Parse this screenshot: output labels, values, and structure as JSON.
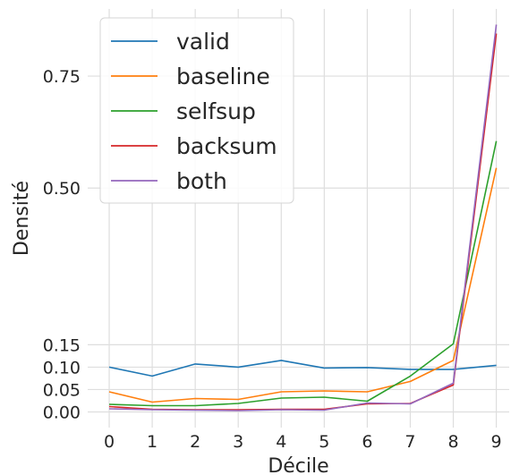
{
  "chart_data": {
    "type": "line",
    "title": "",
    "xlabel": "Décile",
    "ylabel": "Densité",
    "x": [
      0,
      1,
      2,
      3,
      4,
      5,
      6,
      7,
      8,
      9
    ],
    "x_ticks": [
      "0",
      "1",
      "2",
      "3",
      "4",
      "5",
      "6",
      "7",
      "8",
      "9"
    ],
    "y_ticks": [
      {
        "value": 0.0,
        "label": "0.00"
      },
      {
        "value": 0.05,
        "label": "0.05"
      },
      {
        "value": 0.1,
        "label": "0.10"
      },
      {
        "value": 0.15,
        "label": "0.15"
      },
      {
        "value": 0.5,
        "label": "0.50"
      },
      {
        "value": 0.75,
        "label": "0.75"
      }
    ],
    "xlim": [
      -0.5,
      9.3
    ],
    "ylim": [
      -0.035,
      0.9
    ],
    "grid": true,
    "legend_position": "top-left",
    "series": [
      {
        "name": "valid",
        "color": "#1f77b4",
        "values": [
          0.1,
          0.08,
          0.107,
          0.1,
          0.115,
          0.098,
          0.099,
          0.095,
          0.095,
          0.104
        ]
      },
      {
        "name": "baseline",
        "color": "#ff7f0e",
        "values": [
          0.045,
          0.022,
          0.03,
          0.028,
          0.045,
          0.047,
          0.045,
          0.068,
          0.115,
          0.545
        ]
      },
      {
        "name": "selfsup",
        "color": "#2ca02c",
        "values": [
          0.017,
          0.014,
          0.014,
          0.019,
          0.031,
          0.033,
          0.024,
          0.08,
          0.152,
          0.605
        ]
      },
      {
        "name": "backsum",
        "color": "#d62728",
        "values": [
          0.012,
          0.006,
          0.005,
          0.005,
          0.006,
          0.006,
          0.018,
          0.019,
          0.06,
          0.845
        ]
      },
      {
        "name": "both",
        "color": "#9467bd",
        "values": [
          0.007,
          0.005,
          0.004,
          0.003,
          0.005,
          0.004,
          0.02,
          0.018,
          0.064,
          0.865
        ]
      }
    ]
  }
}
